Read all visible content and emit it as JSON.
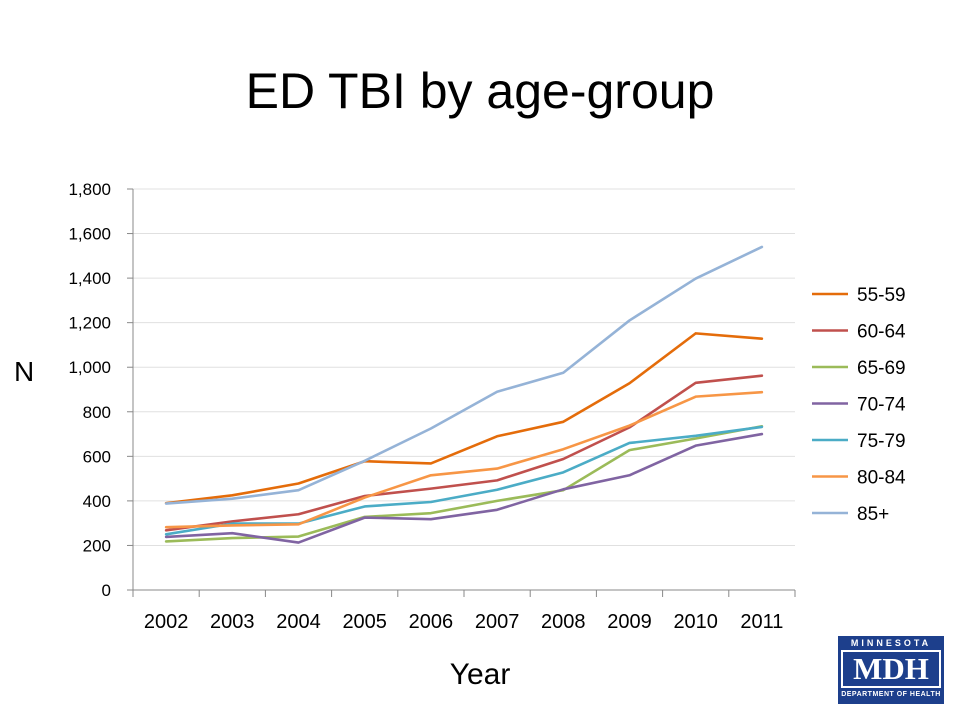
{
  "chart_data": {
    "type": "line",
    "title": "ED TBI by age-group",
    "xlabel": "Year",
    "ylabel": "N",
    "categories": [
      "2002",
      "2003",
      "2004",
      "2005",
      "2006",
      "2007",
      "2008",
      "2009",
      "2010",
      "2011"
    ],
    "ylim": [
      0,
      1800
    ],
    "yticks": [
      0,
      200,
      400,
      600,
      800,
      1000,
      1200,
      1400,
      1600,
      1800
    ],
    "ytick_labels": [
      "0",
      "200",
      "400",
      "600",
      "800",
      "1,000",
      "1,200",
      "1,400",
      "1,600",
      "1,800"
    ],
    "grid": true,
    "legend": "right",
    "series": [
      {
        "name": "55-59",
        "color": "#e46c0a",
        "values": [
          390,
          425,
          478,
          578,
          568,
          690,
          755,
          928,
          1152,
          1128
        ]
      },
      {
        "name": "60-64",
        "color": "#c0504d",
        "values": [
          268,
          308,
          340,
          422,
          455,
          492,
          588,
          730,
          930,
          962
        ]
      },
      {
        "name": "65-69",
        "color": "#9bbb59",
        "values": [
          218,
          233,
          240,
          328,
          345,
          400,
          448,
          628,
          680,
          735
        ]
      },
      {
        "name": "70-74",
        "color": "#8064a2",
        "values": [
          238,
          255,
          213,
          325,
          318,
          360,
          452,
          515,
          648,
          700
        ]
      },
      {
        "name": "75-79",
        "color": "#4bacc6",
        "values": [
          250,
          298,
          298,
          375,
          395,
          450,
          528,
          660,
          692,
          732
        ]
      },
      {
        "name": "80-84",
        "color": "#f79646",
        "values": [
          282,
          290,
          295,
          415,
          515,
          545,
          632,
          738,
          868,
          888
        ]
      },
      {
        "name": "85+",
        "color": "#95b3d7",
        "values": [
          388,
          410,
          448,
          580,
          725,
          890,
          975,
          1210,
          1398,
          1540
        ]
      }
    ]
  },
  "logo": {
    "top_text": "MINNESOTA",
    "main_text": "MDH",
    "bottom_text": "DEPARTMENT OF HEALTH"
  }
}
